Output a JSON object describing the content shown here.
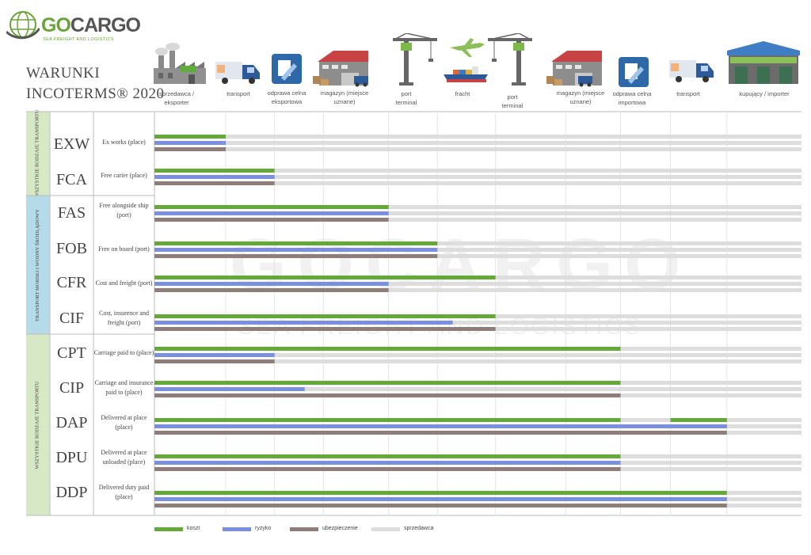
{
  "brand": {
    "name_go": "GO",
    "name_cargo": "CARGO",
    "tagline": "SEA FREIGHT AND LOGISTICS"
  },
  "title": {
    "line1": "WARUNKI",
    "line2": "INCOTERMS® 2020"
  },
  "stages": [
    {
      "label": "sprzedawca / eksporter",
      "icon": "factory-icon"
    },
    {
      "label": "transport",
      "icon": "truck-icon"
    },
    {
      "label": "odprawa celna eksportowa",
      "icon": "customs-icon"
    },
    {
      "label": "magazyn (miejsce uznane)",
      "icon": "warehouse-icon"
    },
    {
      "label": "port terminal",
      "icon": "crane-icon"
    },
    {
      "label": "fracht",
      "icon": "ship-plane-icon"
    },
    {
      "label": "port terminal",
      "icon": "crane-icon"
    },
    {
      "label": "magazyn (miejsce uznane)",
      "icon": "warehouse-icon"
    },
    {
      "label": "odprawa celna importowa",
      "icon": "customs-icon"
    },
    {
      "label": "transport",
      "icon": "truck-icon"
    },
    {
      "label": "kupujący / importer",
      "icon": "building-icon"
    }
  ],
  "groups": [
    {
      "label": "WSZYSTKIE RODZAJE TRANSPORTU",
      "color": "#d6e8c4"
    },
    {
      "label": "TRANSPORT MORSKI I WODNY ŚRÓDLĄDOWY",
      "color": "#b6dbe8"
    },
    {
      "label": "WSZYSTKIE RODZAJE TRANSPORTU",
      "color": "#d6e8c4"
    }
  ],
  "colors": {
    "koszt": "#65a83a",
    "ryzyko": "#7a8fdd",
    "ubezpieczenie": "#8e7d7a",
    "sprzedawca": "#dddddd"
  },
  "watermark": {
    "main": "GOCARGO",
    "sub": "SEA FREIGHT AND LOGISTICS"
  },
  "chart_data": {
    "type": "bar",
    "title": "WARUNKI INCOTERMS® 2020",
    "x_unit": "stage index along the supply chain (0 = seller / exporter, 10.78 = buyer / importer)",
    "xlim": [
      0,
      11.8
    ],
    "categories": [
      "EXW",
      "FCA",
      "FAS",
      "FOB",
      "CFR",
      "CIF",
      "CPT",
      "CIP",
      "DAP",
      "DPU",
      "DDP"
    ],
    "descriptions": [
      "Ex works (place)",
      "Free carier (place)",
      "Free alongside ship (port)",
      "Free on board (port)",
      "Cost and freight (port)",
      "Cost, insurence and freight (port)",
      "Carriage paid to (place)",
      "Carriage and insurance paid to (place)",
      "Delivered at place (place)",
      "Delivered at place unloaded (place)",
      "Delivered duty paid (place)"
    ],
    "series": [
      {
        "name": "koszt",
        "values": [
          1.3,
          2.19,
          4.27,
          5.16,
          6.22,
          6.22,
          8.5,
          8.5,
          8.5,
          8.5,
          10.44
        ],
        "segments": {
          "DAP": [
            [
              0,
              8.5
            ],
            [
              9.41,
              10.44
            ]
          ]
        }
      },
      {
        "name": "ryzyko",
        "values": [
          1.3,
          2.19,
          4.27,
          5.16,
          4.27,
          5.44,
          2.19,
          2.74,
          10.44,
          8.5,
          10.44
        ]
      },
      {
        "name": "ubezpieczenie",
        "values": [
          1.3,
          2.19,
          4.27,
          5.16,
          4.27,
          6.22,
          2.19,
          8.5,
          10.44,
          8.5,
          10.44
        ]
      }
    ],
    "legend": [
      "koszt",
      "ryzyko",
      "ubezpieczenie",
      "sprzedawca"
    ],
    "legend_position": "bottom-left"
  }
}
